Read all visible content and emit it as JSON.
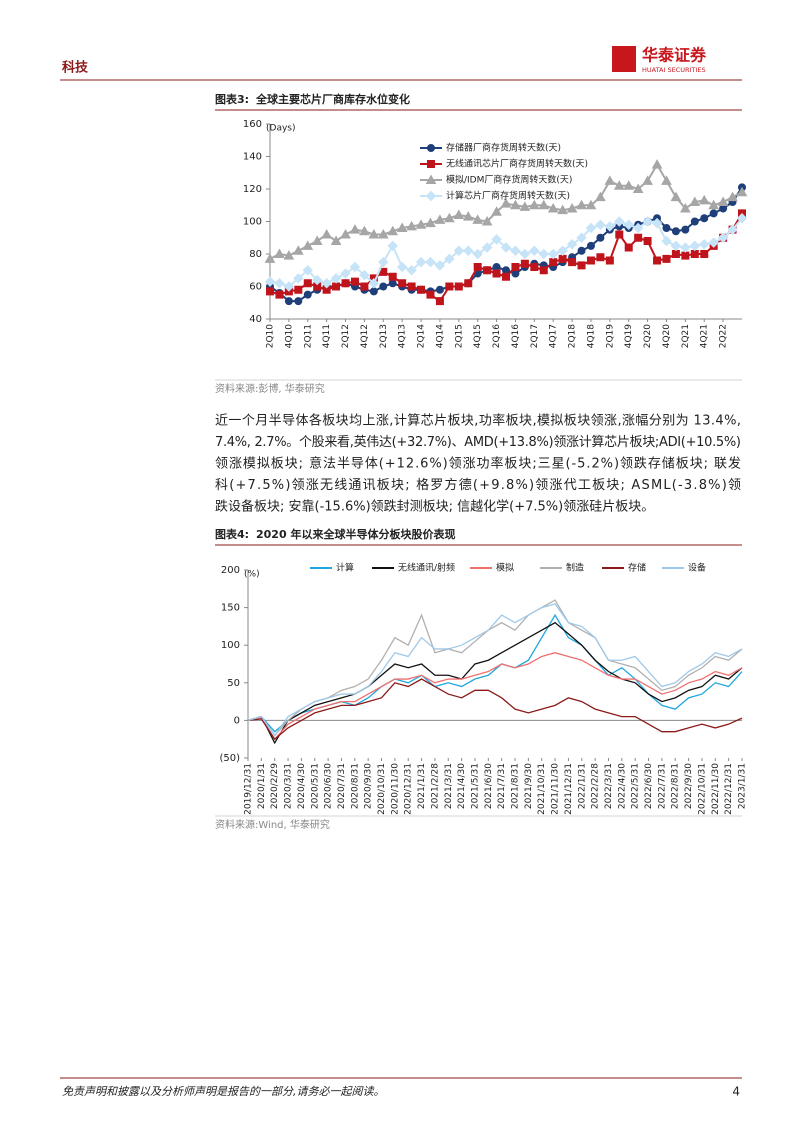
{
  "header": {
    "section": "科技",
    "logo_cn": "华泰证券",
    "logo_en": "HUATAI SECURITIES"
  },
  "figures": [
    {
      "label": "图表3:",
      "title": "全球主要芯片厂商库存水位变化",
      "source": "资料来源:彭博, 华泰研究",
      "chart_data": {
        "type": "line",
        "ylabel": "(Days)",
        "categories": [
          "2Q10",
          null,
          "4Q10",
          null,
          "2Q11",
          null,
          "4Q11",
          null,
          "2Q12",
          null,
          "4Q12",
          null,
          "2Q13",
          null,
          "4Q13",
          null,
          "2Q14",
          null,
          "4Q14",
          null,
          "2Q15",
          null,
          "4Q15",
          null,
          "2Q16",
          null,
          "4Q16",
          null,
          "2Q17",
          null,
          "4Q17",
          null,
          "2Q18",
          null,
          "4Q18",
          null,
          "2Q19",
          null,
          "4Q19",
          null,
          "2Q20",
          null,
          "4Q20",
          null,
          "2Q21",
          null,
          "4Q21",
          null,
          "2Q22",
          null,
          null
        ],
        "ylim": [
          40,
          160
        ],
        "yticks": [
          40,
          60,
          80,
          100,
          120,
          140,
          160
        ],
        "legend": "top",
        "series": [
          {
            "name": "存储器厂商存货周转天数(天)",
            "color": "#1f3f7a",
            "marker": "circle",
            "values": [
              60,
              56,
              51,
              51,
              55,
              58,
              60,
              60,
              62,
              60,
              58,
              57,
              60,
              62,
              60,
              58,
              58,
              57,
              58,
              60,
              60,
              62,
              68,
              70,
              72,
              70,
              68,
              72,
              74,
              73,
              72,
              75,
              78,
              82,
              85,
              90,
              95,
              97,
              96,
              98,
              100,
              102,
              96,
              94,
              95,
              100,
              102,
              105,
              108,
              112,
              121
            ]
          },
          {
            "name": "无线通讯芯片厂商存货周转天数(天)",
            "color": "#c0141c",
            "marker": "square",
            "values": [
              57,
              55,
              57,
              58,
              62,
              60,
              58,
              60,
              62,
              63,
              60,
              65,
              69,
              66,
              62,
              60,
              58,
              55,
              51,
              60,
              60,
              62,
              72,
              70,
              68,
              66,
              72,
              74,
              72,
              70,
              75,
              77,
              75,
              73,
              76,
              78,
              76,
              92,
              84,
              90,
              88,
              76,
              77,
              80,
              79,
              80,
              80,
              85,
              90,
              95,
              105
            ]
          },
          {
            "name": "模拟/IDM厂商存货周转天数(天)",
            "color": "#a6a6a6",
            "marker": "triangle",
            "values": [
              77,
              80,
              79,
              82,
              85,
              88,
              92,
              88,
              92,
              95,
              94,
              92,
              92,
              94,
              96,
              97,
              98,
              99,
              101,
              102,
              104,
              103,
              101,
              100,
              106,
              111,
              110,
              109,
              110,
              110,
              108,
              107,
              108,
              110,
              110,
              115,
              125,
              122,
              122,
              120,
              125,
              135,
              125,
              115,
              108,
              112,
              113,
              110,
              112,
              115,
              118
            ]
          },
          {
            "name": "计算芯片厂商存货周转天数(天)",
            "color": "#c6e3f7",
            "marker": "diamond",
            "values": [
              63,
              62,
              60,
              65,
              70,
              64,
              62,
              65,
              68,
              72,
              67,
              62,
              75,
              85,
              72,
              70,
              75,
              75,
              73,
              77,
              82,
              82,
              80,
              84,
              89,
              84,
              82,
              80,
              82,
              80,
              80,
              82,
              86,
              90,
              96,
              98,
              97,
              100,
              98,
              96,
              100,
              99,
              88,
              85,
              84,
              85,
              86,
              87,
              90,
              95,
              102
            ]
          }
        ]
      }
    },
    {
      "label": "图表4:",
      "title": "2020 年以来全球半导体分板块股价表现",
      "source": "资料来源:Wind, 华泰研究",
      "chart_data": {
        "type": "line",
        "ylabel": "(%)",
        "categories": [
          "2019/12/31",
          "2020/1/31",
          "2020/2/29",
          "2020/3/31",
          "2020/4/30",
          "2020/5/31",
          "2020/6/30",
          "2020/7/31",
          "2020/8/31",
          "2020/9/30",
          "2020/10/31",
          "2020/11/30",
          "2020/12/31",
          "2021/1/31",
          "2021/2/28",
          "2021/3/31",
          "2021/4/30",
          "2021/5/31",
          "2021/6/30",
          "2021/7/31",
          "2021/8/31",
          "2021/9/30",
          "2021/10/31",
          "2021/11/30",
          "2021/12/31",
          "2022/1/31",
          "2022/2/28",
          "2022/3/31",
          "2022/4/30",
          "2022/5/31",
          "2022/6/30",
          "2022/7/31",
          "2022/8/31",
          "2022/9/30",
          "2022/10/31",
          "2022/11/30",
          "2022/12/31",
          "2023/1/31"
        ],
        "ylim": [
          -50,
          200
        ],
        "yticks": [
          {
            "value": -50,
            "label": "(50)"
          },
          0,
          50,
          100,
          150,
          200
        ],
        "legend": "top",
        "series": [
          {
            "name": "计算",
            "color": "#1fa6e0",
            "marker": "none",
            "values": [
              0,
              5,
              -15,
              0,
              10,
              15,
              20,
              25,
              20,
              30,
              45,
              55,
              50,
              60,
              45,
              50,
              45,
              55,
              60,
              75,
              70,
              80,
              110,
              140,
              110,
              100,
              80,
              60,
              70,
              55,
              35,
              20,
              15,
              30,
              35,
              50,
              45,
              65
            ]
          },
          {
            "name": "无线通讯/射频",
            "color": "#111111",
            "marker": "none",
            "values": [
              0,
              5,
              -30,
              0,
              10,
              20,
              25,
              30,
              35,
              45,
              60,
              75,
              70,
              75,
              60,
              60,
              55,
              75,
              80,
              90,
              100,
              110,
              120,
              130,
              115,
              100,
              80,
              65,
              55,
              50,
              35,
              25,
              30,
              40,
              45,
              60,
              55,
              70
            ]
          },
          {
            "name": "模拟",
            "color": "#f07070",
            "marker": "none",
            "values": [
              0,
              3,
              -25,
              -5,
              5,
              15,
              20,
              25,
              25,
              35,
              45,
              55,
              55,
              60,
              50,
              55,
              55,
              60,
              65,
              75,
              70,
              75,
              85,
              90,
              85,
              80,
              70,
              60,
              55,
              55,
              45,
              35,
              40,
              50,
              55,
              65,
              60,
              70
            ]
          },
          {
            "name": "制造",
            "color": "#b0b0b0",
            "marker": "none",
            "values": [
              0,
              5,
              -20,
              0,
              15,
              25,
              30,
              40,
              45,
              55,
              80,
              110,
              100,
              140,
              90,
              95,
              90,
              105,
              120,
              130,
              120,
              140,
              150,
              160,
              130,
              120,
              110,
              80,
              75,
              70,
              55,
              40,
              45,
              60,
              70,
              85,
              80,
              95
            ]
          },
          {
            "name": "存储",
            "color": "#8b1a1a",
            "marker": "none",
            "values": [
              0,
              2,
              -25,
              -10,
              0,
              10,
              15,
              20,
              20,
              25,
              30,
              50,
              45,
              55,
              45,
              35,
              30,
              40,
              40,
              30,
              15,
              10,
              15,
              20,
              30,
              25,
              15,
              10,
              5,
              5,
              -5,
              -15,
              -15,
              -10,
              -5,
              -10,
              -5,
              3
            ]
          },
          {
            "name": "设备",
            "color": "#9fc8e8",
            "marker": "none",
            "values": [
              0,
              5,
              -20,
              5,
              15,
              25,
              30,
              35,
              35,
              45,
              65,
              90,
              85,
              110,
              95,
              95,
              100,
              110,
              120,
              140,
              130,
              140,
              150,
              155,
              130,
              125,
              110,
              80,
              80,
              85,
              65,
              45,
              50,
              65,
              75,
              90,
              85,
              95
            ]
          }
        ]
      }
    }
  ],
  "body": {
    "lines": [
      "近一个月半导体各板块均上涨,计算芯片板块,功率板块,模拟板块领涨,涨幅分别为 13.4%,",
      "7.4%, 2.7%。个股来看,英伟达(+32.7%)、AMD(+13.8%)领涨计算芯片板块;ADI(+10.5%)",
      "领涨模拟板块; 意法半导体(+12.6%)领涨功率板块;三星(-5.2%)领跌存储板块; 联发",
      "科(+7.5%)领涨无线通讯板块; 格罗方德(+9.8%)领涨代工板块; ASML(-3.8%)领",
      "跌设备板块; 安靠(-15.6%)领跌封测板块; 信越化学(+7.5%)领涨硅片板块。"
    ]
  },
  "footer": {
    "disclaimer": "免责声明和披露以及分析师声明是报告的一部分,请务必一起阅读。",
    "page": "4"
  }
}
